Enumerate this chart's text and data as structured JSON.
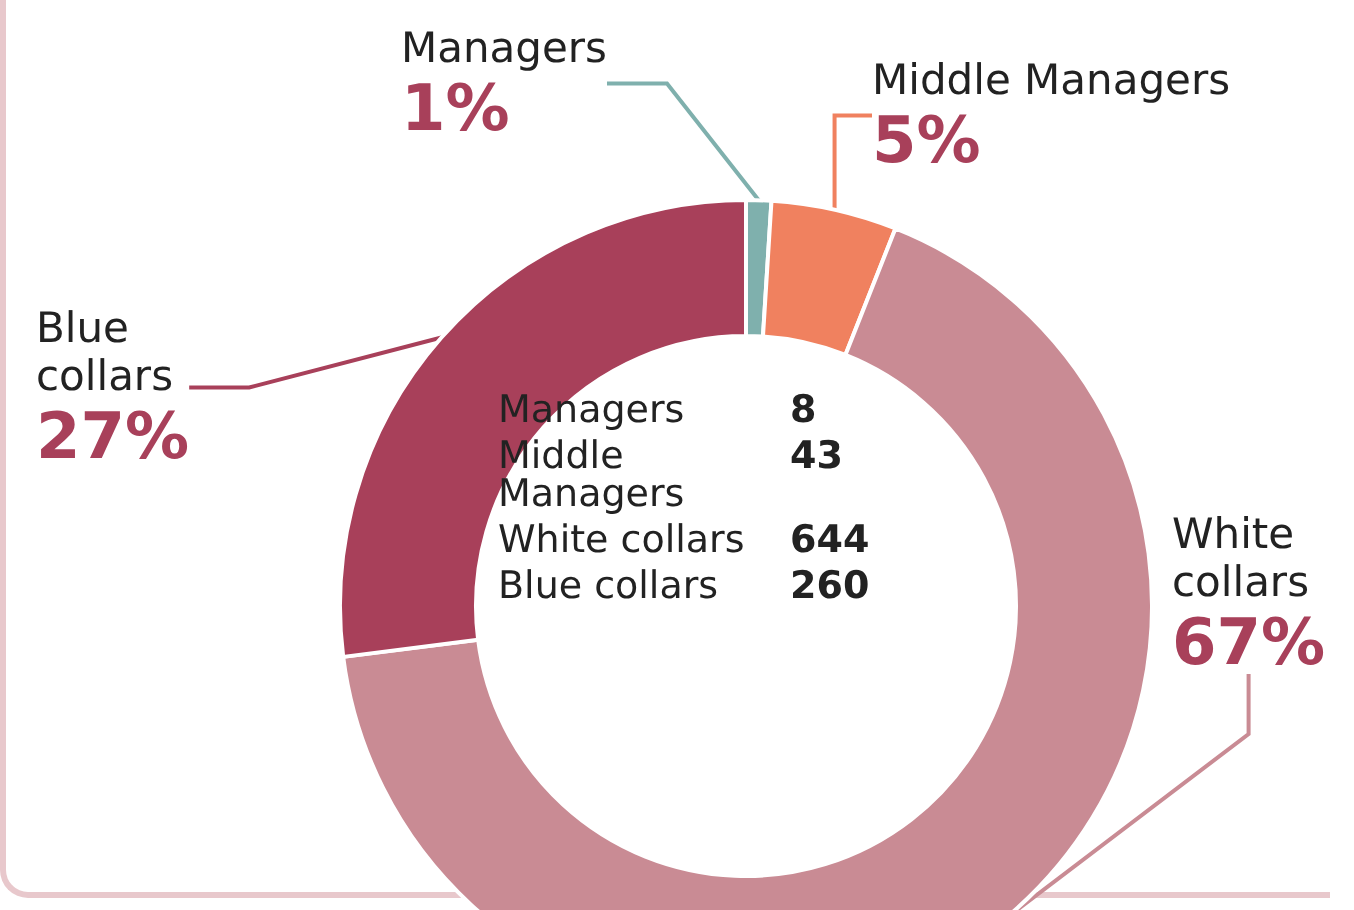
{
  "chart_data": {
    "type": "donut",
    "categories": [
      "Managers",
      "Middle Managers",
      "White collars",
      "Blue collars"
    ],
    "values": [
      1,
      5,
      67,
      27
    ],
    "value_labels": [
      "1%",
      "5%",
      "67%",
      "27%"
    ],
    "colors": [
      "#7fb0ad",
      "#f0815f",
      "#c98b94",
      "#a8405a"
    ],
    "annotations": [
      "Managers 8",
      "Middle Managers 43",
      "White collars 644",
      "Blue collars 260"
    ],
    "legend": false
  }
}
